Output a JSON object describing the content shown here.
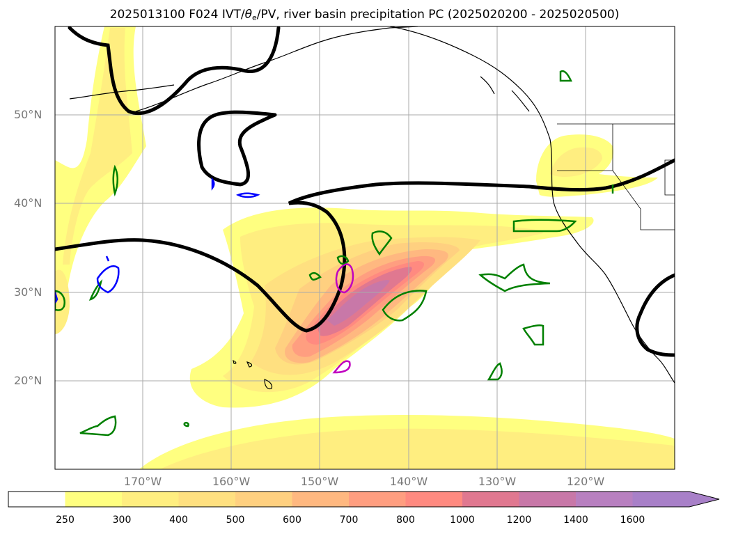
{
  "title": {
    "prefix": "2025013100 F024 IVT/",
    "theta": "θ",
    "theta_sub": "e",
    "suffix": "/PV, river basin precipitation PC (2025020200 - 2025020500)"
  },
  "axes": {
    "lat_labels": [
      "50°N",
      "40°N",
      "30°N",
      "20°N"
    ],
    "lon_labels": [
      "170°W",
      "160°W",
      "150°W",
      "140°W",
      "130°W",
      "120°W"
    ]
  },
  "colorbar": {
    "levels": [
      "250",
      "300",
      "400",
      "500",
      "600",
      "700",
      "800",
      "1000",
      "1200",
      "1400",
      "1600"
    ],
    "colors": [
      "#ffffff",
      "#ffff80",
      "#ffee80",
      "#ffe080",
      "#ffd080",
      "#ffb880",
      "#ff9e80",
      "#ff8a80",
      "#e07890",
      "#c878a8",
      "#b880c0",
      "#a880c8"
    ],
    "extend": "max"
  },
  "legend_colors": {
    "ivt_contour": "#000000",
    "pc_positive": "#008000",
    "pc_negative": "#0000ff",
    "pc_magenta": "#c000c0",
    "coastline": "#000000",
    "gridline": "#aaaaaa"
  }
}
